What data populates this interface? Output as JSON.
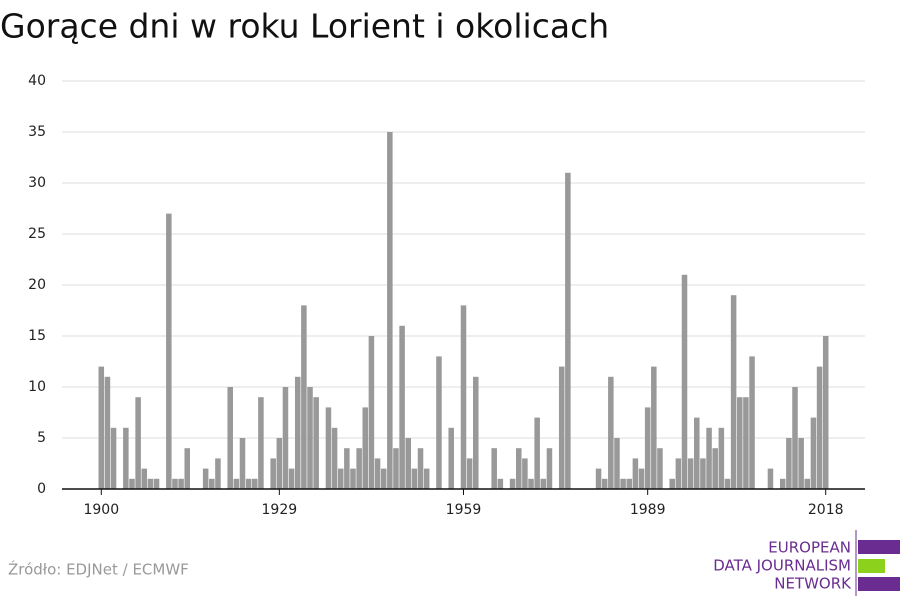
{
  "chart_data": {
    "type": "bar",
    "title": "Gorące dni w roku Lorient i okolicach",
    "x": [
      1900,
      1901,
      1902,
      1903,
      1904,
      1905,
      1906,
      1907,
      1908,
      1909,
      1910,
      1911,
      1912,
      1913,
      1914,
      1915,
      1916,
      1917,
      1918,
      1919,
      1920,
      1921,
      1922,
      1923,
      1924,
      1925,
      1926,
      1927,
      1928,
      1929,
      1930,
      1931,
      1932,
      1933,
      1934,
      1935,
      1936,
      1937,
      1938,
      1939,
      1940,
      1941,
      1942,
      1943,
      1944,
      1945,
      1946,
      1947,
      1948,
      1949,
      1950,
      1951,
      1952,
      1953,
      1954,
      1955,
      1956,
      1957,
      1958,
      1959,
      1960,
      1961,
      1962,
      1963,
      1964,
      1965,
      1966,
      1967,
      1968,
      1969,
      1970,
      1971,
      1972,
      1973,
      1974,
      1975,
      1976,
      1977,
      1978,
      1979,
      1980,
      1981,
      1982,
      1983,
      1984,
      1985,
      1986,
      1987,
      1988,
      1989,
      1990,
      1991,
      1992,
      1993,
      1994,
      1995,
      1996,
      1997,
      1998,
      1999,
      2000,
      2001,
      2002,
      2003,
      2004,
      2005,
      2006,
      2007,
      2008,
      2009,
      2010,
      2011,
      2012,
      2013,
      2014,
      2015,
      2016,
      2017,
      2018
    ],
    "values": [
      12,
      11,
      6,
      0,
      6,
      1,
      9,
      2,
      1,
      1,
      0,
      27,
      1,
      1,
      4,
      0,
      0,
      2,
      1,
      3,
      0,
      10,
      1,
      5,
      1,
      1,
      9,
      0,
      3,
      5,
      10,
      2,
      11,
      18,
      10,
      9,
      0,
      8,
      6,
      2,
      4,
      2,
      4,
      8,
      15,
      3,
      2,
      35,
      4,
      16,
      5,
      2,
      4,
      2,
      0,
      13,
      0,
      6,
      0,
      18,
      3,
      11,
      0,
      0,
      4,
      1,
      0,
      1,
      4,
      3,
      1,
      7,
      1,
      4,
      0,
      12,
      31,
      0,
      0,
      0,
      0,
      2,
      1,
      11,
      5,
      1,
      1,
      3,
      2,
      8,
      12,
      4,
      0,
      1,
      3,
      21,
      3,
      7,
      3,
      6,
      4,
      6,
      1,
      19,
      9,
      9,
      13,
      0,
      0,
      2,
      0,
      1,
      5,
      10,
      5,
      1,
      7,
      12,
      15
    ],
    "color": "#999999",
    "xlim": [
      1893.6,
      2024.4
    ],
    "xticks": [
      1900,
      1929,
      1959,
      1989,
      2018
    ],
    "ylim": [
      0,
      40
    ],
    "yticks": [
      0,
      5,
      10,
      15,
      20,
      25,
      30,
      35,
      40
    ],
    "grid": true
  },
  "footer": {
    "source": "Źródło: EDJNet / ECMWF",
    "logo": [
      "EUROPEAN",
      "DATA JOURNALISM",
      "NETWORK"
    ]
  }
}
